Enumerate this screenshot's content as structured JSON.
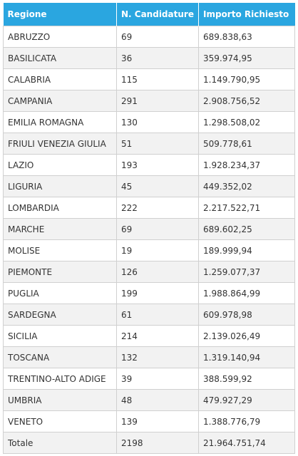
{
  "table": {
    "headers": [
      "Regione",
      "N. Candidature",
      "Importo Richiesto"
    ],
    "rows": [
      [
        "ABRUZZO",
        "69",
        "689.838,63"
      ],
      [
        "BASILICATA",
        "36",
        "359.974,95"
      ],
      [
        "CALABRIA",
        "115",
        "1.149.790,95"
      ],
      [
        "CAMPANIA",
        "291",
        "2.908.756,52"
      ],
      [
        "EMILIA ROMAGNA",
        "130",
        "1.298.508,02"
      ],
      [
        "FRIULI VENEZIA GIULIA",
        "51",
        "509.778,61"
      ],
      [
        "LAZIO",
        "193",
        "1.928.234,37"
      ],
      [
        "LIGURIA",
        "45",
        "449.352,02"
      ],
      [
        "LOMBARDIA",
        "222",
        "2.217.522,71"
      ],
      [
        "MARCHE",
        "69",
        "689.602,25"
      ],
      [
        "MOLISE",
        "19",
        "189.999,94"
      ],
      [
        "PIEMONTE",
        "126",
        "1.259.077,37"
      ],
      [
        "PUGLIA",
        "199",
        "1.988.864,99"
      ],
      [
        "SARDEGNA",
        "61",
        "609.978,98"
      ],
      [
        "SICILIA",
        "214",
        "2.139.026,49"
      ],
      [
        "TOSCANA",
        "132",
        "1.319.140,94"
      ],
      [
        "TRENTINO-ALTO ADIGE",
        "39",
        "388.599,92"
      ],
      [
        "UMBRIA",
        "48",
        "479.927,29"
      ],
      [
        "VENETO",
        "139",
        "1.388.776,79"
      ],
      [
        "Totale",
        "2198",
        "21.964.751,74"
      ]
    ]
  },
  "colors": {
    "header_bg": "#2aa6e0",
    "header_text": "#ffffff",
    "row_alt_bg": "#f2f2f2",
    "border": "#d0d0d0"
  }
}
